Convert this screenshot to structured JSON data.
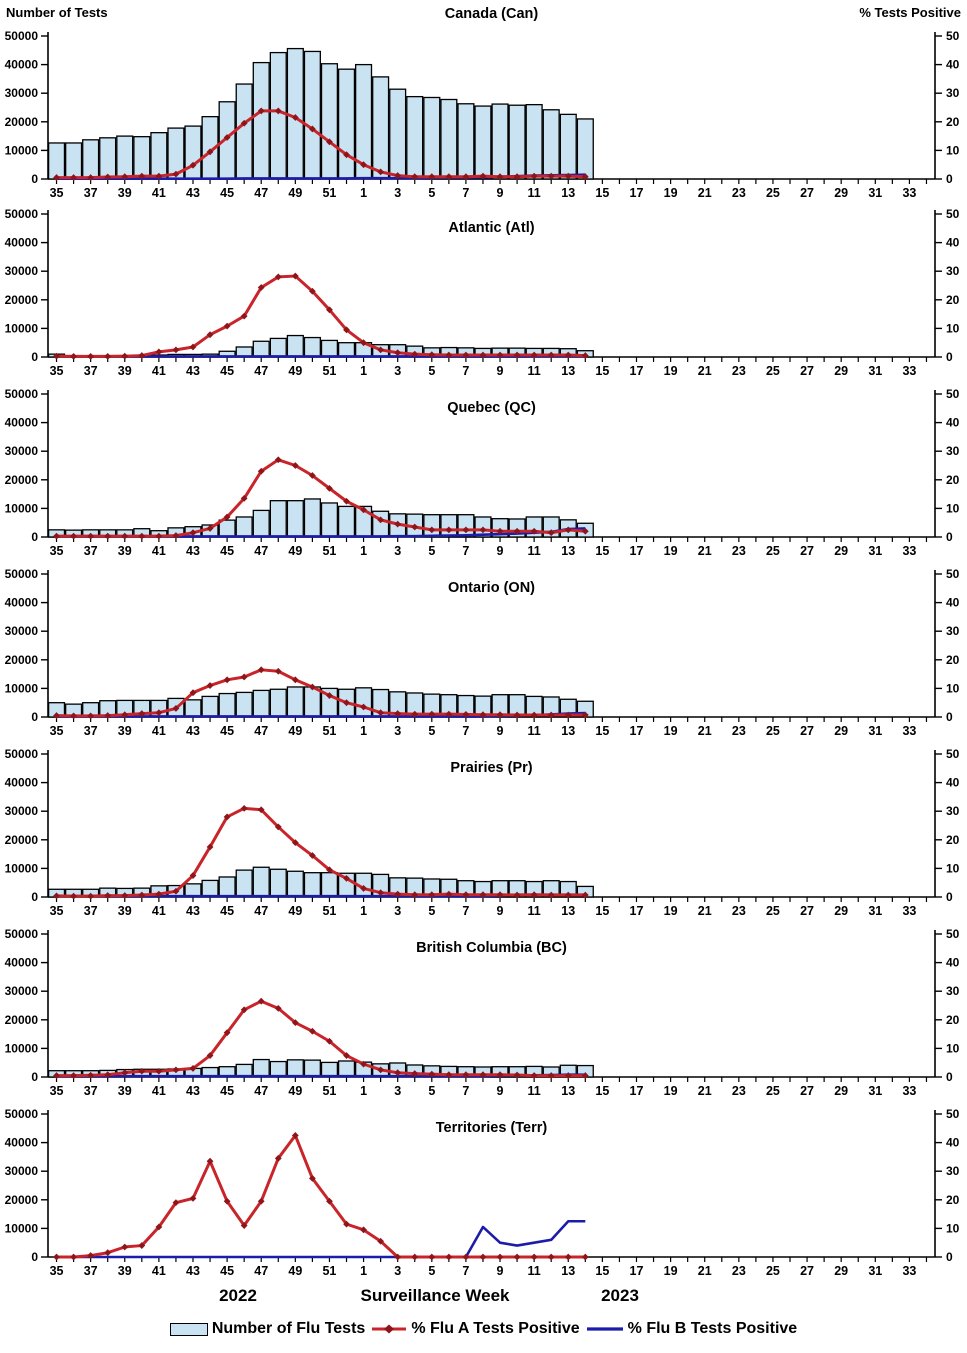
{
  "header": {
    "left_axis_title": "Number of Tests",
    "right_axis_title": "% Tests Positive"
  },
  "footer": {
    "year_left": "2022",
    "xlabel": "Surveillance Week",
    "year_right": "2023"
  },
  "legend": [
    {
      "label": "Number of Flu Tests",
      "glyph": "bar-swatch-icon",
      "color": "#C9E3F3"
    },
    {
      "label": "% Flu A Tests Positive",
      "glyph": "red-diamond-line-icon",
      "color": "#C8242A"
    },
    {
      "label": "% Flu B Tests Positive",
      "glyph": "blue-line-icon",
      "color": "#1C1CAB"
    }
  ],
  "colors": {
    "bar_fill": "#C9E3F3",
    "bar_stroke": "#000000",
    "flu_a_line": "#C8242A",
    "flu_a_marker": "#8E161B",
    "flu_b_line": "#1C1CAB",
    "axis": "#000000"
  },
  "chart_data": {
    "type": "combo-bar-line-multipanel",
    "x_weeks": [
      35,
      36,
      37,
      38,
      39,
      40,
      41,
      42,
      43,
      44,
      45,
      46,
      47,
      48,
      49,
      50,
      51,
      52,
      1,
      2,
      3,
      4,
      5,
      6,
      7,
      8,
      9,
      10,
      11,
      12,
      13,
      14,
      15,
      16,
      17,
      18,
      19,
      20,
      21,
      22,
      23,
      24,
      25,
      26,
      27,
      28,
      29,
      30,
      31,
      32,
      33,
      34
    ],
    "data_weeks_count": 32,
    "left_axis": {
      "title": "Number of Tests",
      "ticks": [
        0,
        10000,
        20000,
        30000,
        40000,
        50000
      ],
      "max": 50000
    },
    "right_axis": {
      "title": "% Tests Positive",
      "ticks": [
        0,
        10,
        20,
        30,
        40,
        50
      ],
      "max": 50
    },
    "series_names": {
      "bars": "Number of Flu Tests",
      "flu_a": "% Flu A Tests Positive",
      "flu_b": "% Flu B Tests Positive"
    },
    "panels": [
      {
        "id": "canada",
        "title": "Canada (Can)",
        "bars": [
          12600,
          12600,
          13700,
          14400,
          15000,
          14800,
          16200,
          17800,
          18500,
          21800,
          27000,
          33200,
          40700,
          44200,
          45600,
          44600,
          40300,
          38400,
          40000,
          35700,
          31400,
          28800,
          28500,
          27800,
          26300,
          25500,
          26200,
          25800,
          26000,
          24200,
          22600,
          21000
        ],
        "flu_a_pct": [
          0.5,
          0.5,
          0.5,
          0.7,
          0.8,
          1.0,
          1.0,
          1.7,
          4.8,
          9.5,
          14.5,
          19.5,
          23.8,
          23.8,
          21.5,
          17.5,
          13.0,
          8.5,
          5.0,
          2.5,
          1.2,
          0.8,
          0.8,
          0.8,
          0.8,
          1.0,
          0.8,
          0.8,
          1.0,
          1.0,
          1.0,
          0.8
        ],
        "flu_b_pct": [
          0.1,
          0.1,
          0.1,
          0.1,
          0.1,
          0.1,
          0.1,
          0.1,
          0.1,
          0.1,
          0.1,
          0.2,
          0.2,
          0.2,
          0.2,
          0.2,
          0.2,
          0.2,
          0.3,
          0.3,
          0.3,
          0.3,
          0.4,
          0.5,
          0.5,
          0.6,
          0.8,
          1.0,
          1.2,
          1.3,
          1.4,
          1.5
        ]
      },
      {
        "id": "atlantic",
        "title": "Atlantic (Atl)",
        "bars": [
          1000,
          350,
          400,
          350,
          400,
          400,
          700,
          900,
          900,
          1000,
          2000,
          3500,
          5500,
          6500,
          7500,
          6800,
          5800,
          5000,
          5000,
          4300,
          4300,
          3800,
          3200,
          3300,
          3200,
          3000,
          3100,
          3100,
          3000,
          3000,
          2900,
          2200
        ],
        "flu_a_pct": [
          0.3,
          0.2,
          0.2,
          0.2,
          0.3,
          0.5,
          1.8,
          2.5,
          3.5,
          7.8,
          10.8,
          14.3,
          24.3,
          28.0,
          28.3,
          23.0,
          16.5,
          9.5,
          5.0,
          2.5,
          1.5,
          1.0,
          0.8,
          0.7,
          0.7,
          0.7,
          0.7,
          0.7,
          0.7,
          0.7,
          0.7,
          0.5
        ],
        "flu_b_pct": [
          0.2,
          0.2,
          0.2,
          0.2,
          0.2,
          0.2,
          0.2,
          0.2,
          0.2,
          0.2,
          0.2,
          0.2,
          0.2,
          0.2,
          0.2,
          0.2,
          0.2,
          0.2,
          0.2,
          0.2,
          0.2,
          0.2,
          0.2,
          0.2,
          0.2,
          0.2,
          0.2,
          0.2,
          0.3,
          0.3,
          0.3,
          0.3
        ]
      },
      {
        "id": "quebec",
        "title": "Quebec (QC)",
        "bars": [
          2500,
          2400,
          2500,
          2500,
          2500,
          2900,
          2200,
          3200,
          3600,
          4200,
          5900,
          7000,
          9300,
          12700,
          12700,
          13300,
          11900,
          10700,
          10700,
          9000,
          8100,
          8000,
          7800,
          7800,
          7800,
          7000,
          6400,
          6300,
          7000,
          7000,
          6000,
          4800
        ],
        "flu_a_pct": [
          0.3,
          0.3,
          0.3,
          0.3,
          0.3,
          0.3,
          0.3,
          0.5,
          1.5,
          3.0,
          7.0,
          13.5,
          23.0,
          27.0,
          25.0,
          21.5,
          17.0,
          12.5,
          9.5,
          6.0,
          4.5,
          3.5,
          2.5,
          2.5,
          2.5,
          2.5,
          2.0,
          2.0,
          2.0,
          1.5,
          2.5,
          2.0
        ],
        "flu_b_pct": [
          0.2,
          0.2,
          0.2,
          0.2,
          0.2,
          0.2,
          0.2,
          0.2,
          0.2,
          0.2,
          0.2,
          0.2,
          0.2,
          0.2,
          0.2,
          0.2,
          0.2,
          0.2,
          0.2,
          0.2,
          0.3,
          0.3,
          0.4,
          0.5,
          0.6,
          0.8,
          1.0,
          1.2,
          1.5,
          1.8,
          2.8,
          3.0
        ]
      },
      {
        "id": "ontario",
        "title": "Ontario (ON)",
        "bars": [
          5000,
          4500,
          5000,
          5700,
          5800,
          5800,
          5800,
          6500,
          6000,
          7200,
          8200,
          8600,
          9300,
          9700,
          10500,
          10500,
          10000,
          9700,
          10200,
          9600,
          8800,
          8400,
          8000,
          7800,
          7500,
          7300,
          7800,
          7800,
          7200,
          7000,
          6200,
          5500
        ],
        "flu_a_pct": [
          0.5,
          0.4,
          0.4,
          0.5,
          0.8,
          1.2,
          1.5,
          3.0,
          8.5,
          11.0,
          13.0,
          14.0,
          16.5,
          16.0,
          13.0,
          10.5,
          7.5,
          5.0,
          3.5,
          1.5,
          1.2,
          1.0,
          1.0,
          1.0,
          0.9,
          0.8,
          0.8,
          0.7,
          0.7,
          0.7,
          0.7,
          0.7
        ],
        "flu_b_pct": [
          0.2,
          0.2,
          0.2,
          0.2,
          0.2,
          0.2,
          0.2,
          0.2,
          0.2,
          0.2,
          0.2,
          0.2,
          0.2,
          0.2,
          0.2,
          0.2,
          0.2,
          0.2,
          0.2,
          0.2,
          0.2,
          0.2,
          0.2,
          0.2,
          0.2,
          0.2,
          0.4,
          0.5,
          0.7,
          0.9,
          1.2,
          1.4
        ]
      },
      {
        "id": "prairies",
        "title": "Prairies (Pr)",
        "bars": [
          2700,
          2700,
          2700,
          3100,
          3000,
          3100,
          3900,
          4000,
          4600,
          5800,
          7000,
          9400,
          10400,
          9700,
          9000,
          8500,
          8500,
          8300,
          8300,
          7900,
          6700,
          6600,
          6300,
          6200,
          5700,
          5400,
          5700,
          5700,
          5400,
          5700,
          5400,
          3700
        ],
        "flu_a_pct": [
          0.4,
          0.3,
          0.3,
          0.5,
          0.5,
          0.7,
          1.0,
          2.0,
          7.5,
          17.5,
          28.0,
          31.0,
          30.5,
          24.5,
          19.0,
          14.5,
          9.5,
          6.5,
          3.0,
          1.5,
          1.0,
          0.8,
          0.8,
          1.0,
          0.8,
          0.8,
          0.8,
          0.7,
          0.8,
          0.7,
          0.7,
          0.7
        ],
        "flu_b_pct": [
          0.3,
          0.3,
          0.3,
          0.3,
          0.3,
          0.3,
          0.3,
          0.3,
          0.3,
          0.3,
          0.3,
          0.3,
          0.3,
          0.3,
          0.3,
          0.3,
          0.3,
          0.3,
          0.3,
          0.3,
          0.3,
          0.3,
          0.3,
          0.3,
          0.3,
          0.3,
          0.5,
          0.8,
          0.8,
          0.8,
          0.8,
          0.8
        ]
      },
      {
        "id": "british-columbia",
        "title": "British Columbia (BC)",
        "bars": [
          2200,
          2200,
          2200,
          2300,
          2600,
          2700,
          2700,
          2800,
          3000,
          3300,
          3600,
          4400,
          6100,
          5400,
          6000,
          5900,
          5100,
          5600,
          5200,
          4600,
          4900,
          4200,
          3900,
          3700,
          3600,
          3500,
          3600,
          3600,
          3700,
          3500,
          4100,
          4000
        ],
        "flu_a_pct": [
          0.5,
          0.5,
          0.6,
          0.8,
          1.5,
          2.0,
          2.0,
          2.5,
          3.0,
          7.5,
          15.5,
          23.5,
          26.5,
          24.0,
          19.0,
          16.0,
          12.5,
          7.5,
          4.5,
          2.5,
          1.5,
          1.2,
          1.0,
          0.8,
          0.8,
          0.8,
          0.8,
          0.7,
          0.5,
          0.5,
          0.5,
          0.5
        ],
        "flu_b_pct": [
          0.3,
          0.3,
          0.3,
          0.3,
          0.3,
          0.3,
          0.3,
          0.3,
          0.3,
          0.3,
          0.3,
          0.3,
          0.3,
          0.3,
          0.3,
          0.3,
          0.3,
          0.3,
          0.3,
          0.3,
          0.3,
          0.3,
          0.3,
          0.3,
          0.3,
          0.3,
          0.5,
          0.5,
          0.6,
          0.7,
          0.8,
          0.8
        ]
      },
      {
        "id": "territories",
        "title": "Territories (Terr)",
        "bars": [
          0,
          0,
          0,
          0,
          0,
          0,
          0,
          0,
          0,
          0,
          0,
          0,
          0,
          0,
          0,
          0,
          0,
          0,
          0,
          0,
          0,
          0,
          0,
          0,
          0,
          0,
          0,
          0,
          0,
          0,
          0,
          0
        ],
        "flu_a_pct": [
          0,
          0,
          0.5,
          1.5,
          3.5,
          4.0,
          10.5,
          19.0,
          20.5,
          33.5,
          19.5,
          11.0,
          19.5,
          34.5,
          42.5,
          27.5,
          19.5,
          11.5,
          9.5,
          5.5,
          0,
          0,
          0,
          0,
          0,
          0,
          0,
          0,
          0,
          0,
          0,
          0
        ],
        "flu_b_pct": [
          0,
          0,
          0,
          0,
          0,
          0,
          0,
          0,
          0,
          0,
          0,
          0,
          0,
          0,
          0,
          0,
          0,
          0,
          0,
          0,
          0,
          0,
          0,
          0,
          0,
          10.5,
          5.0,
          4.0,
          5.0,
          6.0,
          12.5,
          12.5
        ]
      }
    ]
  }
}
